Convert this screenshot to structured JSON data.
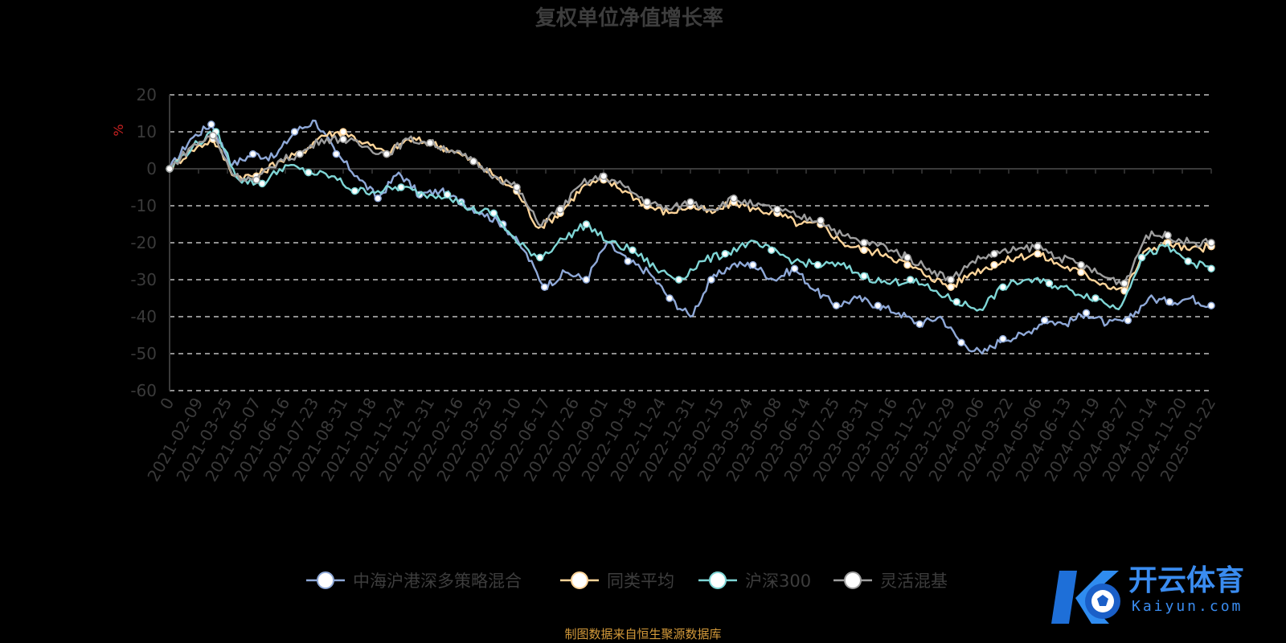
{
  "source_note": "制图数据来自恒生聚源数据库",
  "logo": {
    "text": "开云体育",
    "sub": "Kaiyun.com"
  },
  "chart_data": {
    "type": "line",
    "title": "复权单位净值增长率",
    "ylabel": "%",
    "ylim": [
      -60,
      20
    ],
    "yticks": [
      20,
      10,
      0,
      -10,
      -20,
      -30,
      -40,
      -50,
      -60
    ],
    "grid": true,
    "legend_position": "bottom",
    "x_ticks": [
      "0",
      "2021-02-09",
      "2021-03-25",
      "2021-05-07",
      "2021-06-16",
      "2021-07-23",
      "2021-08-31",
      "2021-10-18",
      "2021-11-24",
      "2021-12-31",
      "2022-02-16",
      "2022-03-25",
      "2022-05-10",
      "2022-06-17",
      "2022-07-26",
      "2022-09-01",
      "2022-10-18",
      "2022-11-24",
      "2022-12-31",
      "2023-02-15",
      "2023-03-24",
      "2023-05-08",
      "2023-06-14",
      "2023-07-25",
      "2023-08-31",
      "2023-10-16",
      "2023-11-22",
      "2023-12-29",
      "2024-02-06",
      "2024-03-22",
      "2024-05-06",
      "2024-06-13",
      "2024-07-19",
      "2024-08-27",
      "2024-10-14",
      "2024-11-20",
      "2025-01-22"
    ],
    "series": [
      {
        "name": "中海沪港深多策略混合",
        "color": "#8fa9d8",
        "values": [
          0,
          8,
          12,
          1,
          4,
          3,
          10,
          13,
          4,
          -2,
          -8,
          -1,
          -7,
          -6,
          -9,
          -12,
          -15,
          -22,
          -32,
          -28,
          -30,
          -20,
          -25,
          -28,
          -35,
          -40,
          -30,
          -26,
          -26,
          -30,
          -27,
          -33,
          -37,
          -35,
          -37,
          -39,
          -42,
          -40,
          -47,
          -50,
          -46,
          -45,
          -41,
          -42,
          -39,
          -42,
          -41,
          -35,
          -36,
          -35,
          -37
        ]
      },
      {
        "name": "同类平均",
        "color": "#ffd59a",
        "values": [
          0,
          5,
          8,
          -2,
          -2,
          2,
          4,
          9,
          10,
          7,
          4,
          8,
          7,
          5,
          2,
          -2,
          -6,
          -16,
          -12,
          -5,
          -3,
          -6,
          -10,
          -12,
          -10,
          -12,
          -9,
          -11,
          -12,
          -15,
          -15,
          -20,
          -22,
          -23,
          -26,
          -29,
          -32,
          -28,
          -26,
          -24,
          -23,
          -26,
          -28,
          -31,
          -33,
          -22,
          -20,
          -22,
          -21
        ]
      },
      {
        "name": "沪深300",
        "color": "#7fd6d6",
        "values": [
          0,
          6,
          10,
          -3,
          -4,
          1,
          -1,
          -2,
          -6,
          -6,
          -5,
          -7,
          -7,
          -11,
          -12,
          -20,
          -24,
          -19,
          -15,
          -20,
          -22,
          -27,
          -30,
          -25,
          -23,
          -20,
          -22,
          -25,
          -26,
          -26,
          -29,
          -31,
          -30,
          -33,
          -36,
          -38,
          -32,
          -30,
          -31,
          -33,
          -35,
          -38,
          -24,
          -21,
          -25,
          -27
        ]
      },
      {
        "name": "灵活混基",
        "color": "#9e9e9e",
        "values": [
          0,
          6,
          9,
          -2,
          -3,
          2,
          4,
          8,
          8,
          6,
          4,
          8,
          7,
          5,
          2,
          -2,
          -5,
          -15,
          -11,
          -4,
          -2,
          -5,
          -9,
          -11,
          -9,
          -11,
          -8,
          -10,
          -11,
          -13,
          -14,
          -18,
          -20,
          -21,
          -24,
          -27,
          -30,
          -25,
          -23,
          -22,
          -21,
          -24,
          -26,
          -29,
          -31,
          -18,
          -18,
          -20,
          -20
        ]
      }
    ]
  }
}
